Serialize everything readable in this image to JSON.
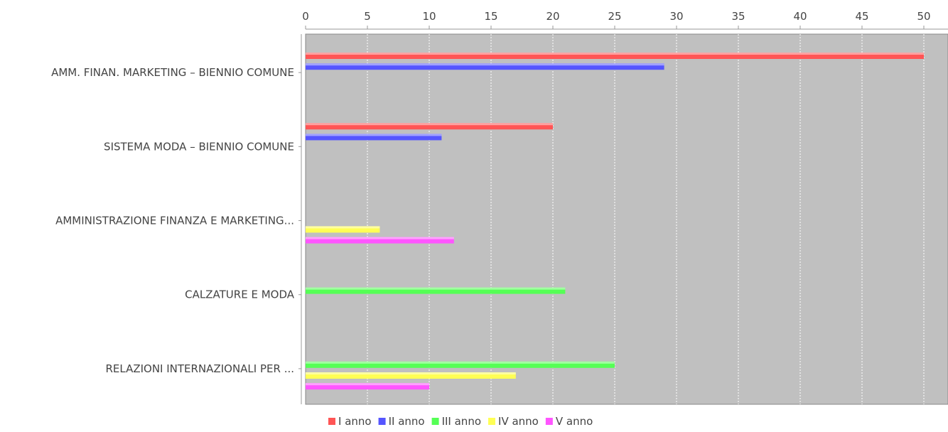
{
  "chart_data": {
    "type": "bar",
    "orientation": "horizontal",
    "xlim": [
      0,
      52
    ],
    "xticks": [
      0,
      5,
      10,
      15,
      20,
      25,
      30,
      35,
      40,
      45,
      50
    ],
    "grid": true,
    "legend_position": "bottom",
    "categories": [
      "AMM. FINAN. MARKETING – BIENNIO COMUNE",
      "SISTEMA MODA – BIENNIO COMUNE",
      "AMMINISTRAZIONE FINANZA E MARKETING...",
      "CALZATURE E MODA",
      "RELAZIONI INTERNAZIONALI PER ..."
    ],
    "series": [
      {
        "name": "I anno",
        "color": "#ff5555",
        "values": [
          50,
          20,
          0,
          0,
          0
        ]
      },
      {
        "name": "II anno",
        "color": "#5555ff",
        "values": [
          29,
          11,
          0,
          0,
          0
        ]
      },
      {
        "name": "III anno",
        "color": "#55ff55",
        "values": [
          0,
          0,
          0,
          21,
          25
        ]
      },
      {
        "name": "IV anno",
        "color": "#ffff55",
        "values": [
          0,
          0,
          6,
          0,
          17
        ]
      },
      {
        "name": "V anno",
        "color": "#ff55ff",
        "values": [
          0,
          0,
          12,
          0,
          10
        ]
      }
    ],
    "plot_background": "#c0c0c0"
  }
}
